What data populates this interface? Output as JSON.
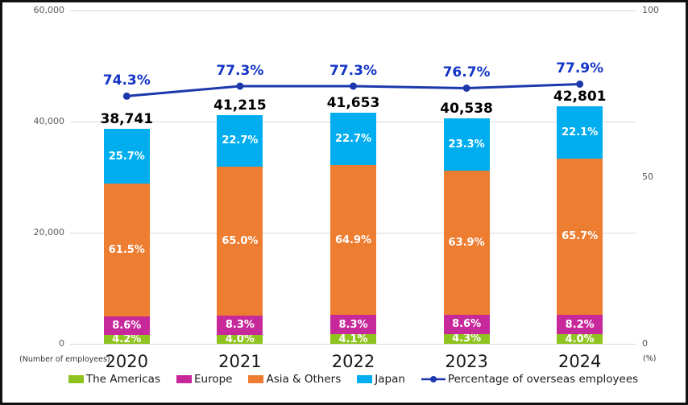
{
  "chart_data": {
    "type": "stacked-bar-line-combo",
    "title": "",
    "categories": [
      "2020",
      "2021",
      "2022",
      "2023",
      "2024"
    ],
    "totals": [
      38741,
      41215,
      41653,
      40538,
      42801
    ],
    "total_labels": [
      "38,741",
      "41,215",
      "41,653",
      "40,538",
      "42,801"
    ],
    "stack_unit": "percent-of-total",
    "series": [
      {
        "name": "The Americas",
        "color": "#8FC31F",
        "values_pct": [
          4.2,
          4.0,
          4.1,
          4.3,
          4.0
        ],
        "labels": [
          "4.2%",
          "4.0%",
          "4.1%",
          "4.3%",
          "4.0%"
        ]
      },
      {
        "name": "Europe",
        "color": "#C7299B",
        "values_pct": [
          8.6,
          8.3,
          8.3,
          8.6,
          8.2
        ],
        "labels": [
          "8.6%",
          "8.3%",
          "8.3%",
          "8.6%",
          "8.2%"
        ]
      },
      {
        "name": "Asia & Others",
        "color": "#ED7D31",
        "values_pct": [
          61.5,
          65.0,
          64.9,
          63.9,
          65.7
        ],
        "labels": [
          "61.5%",
          "65.0%",
          "64.9%",
          "63.9%",
          "65.7%"
        ]
      },
      {
        "name": "Japan",
        "color": "#00AEEF",
        "values_pct": [
          25.7,
          22.7,
          22.7,
          23.3,
          22.1
        ],
        "labels": [
          "25.7%",
          "22.7%",
          "22.7%",
          "23.3%",
          "22.1%"
        ]
      }
    ],
    "line_series": {
      "name": "Percentage of overseas employees",
      "color": "#1C38AC",
      "label_color": "#1335C6",
      "values": [
        74.3,
        77.3,
        77.3,
        76.7,
        77.9
      ],
      "labels": [
        "74.3%",
        "77.3%",
        "77.3%",
        "76.7%",
        "77.9%"
      ]
    },
    "left_axis": {
      "unit_label": "(Number of employees)",
      "min": 0,
      "max": 60000,
      "ticks": [
        {
          "label": "60,000",
          "value": 60000
        },
        {
          "label": "40,000",
          "value": 40000
        },
        {
          "label": "20,000",
          "value": 20000
        },
        {
          "label": "0",
          "value": 0
        }
      ]
    },
    "right_axis": {
      "unit_label": "(%)",
      "min": 0,
      "max": 100,
      "ticks": [
        {
          "label": "100",
          "value": 100
        },
        {
          "label": "50",
          "value": 50
        },
        {
          "label": "0",
          "value": 0
        }
      ]
    },
    "grid": true,
    "legend_position": "bottom"
  }
}
